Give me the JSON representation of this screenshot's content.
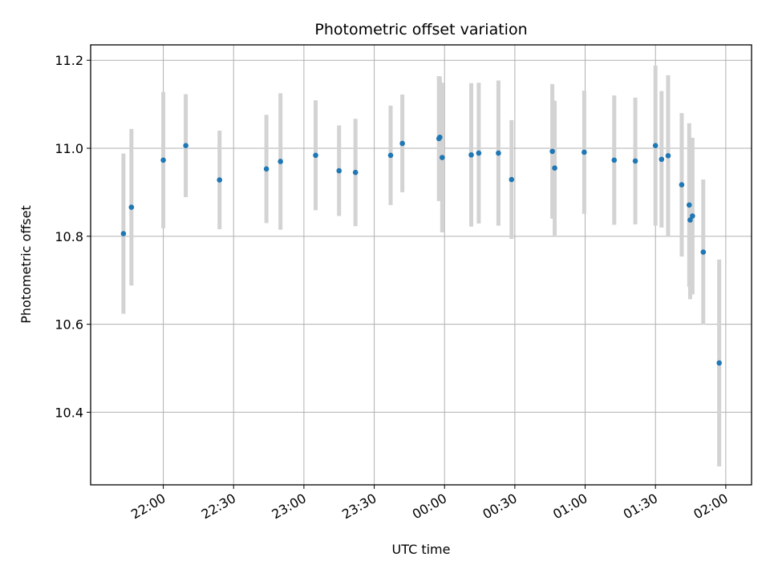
{
  "chart_data": {
    "type": "scatter",
    "title": "Photometric offset variation",
    "xlabel": "UTC time",
    "ylabel": "Photometric offset",
    "x_unit": "minutes relative to 00:00 UTC",
    "xlim": [
      -75.5,
      65.5
    ],
    "ylim": [
      10.235,
      11.235
    ],
    "grid": true,
    "x_ticks": [
      {
        "value": -60,
        "label": "22:00"
      },
      {
        "value": -45,
        "label": "22:30"
      },
      {
        "value": -30,
        "label": "23:00"
      },
      {
        "value": -15,
        "label": "23:30"
      },
      {
        "value": 0,
        "label": "00:00"
      },
      {
        "value": 15,
        "label": "00:30"
      },
      {
        "value": 30,
        "label": "01:00"
      },
      {
        "value": 45,
        "label": "01:30"
      },
      {
        "value": 60,
        "label": "02:00"
      }
    ],
    "y_ticks": [
      {
        "value": 10.4,
        "label": "10.4"
      },
      {
        "value": 10.6,
        "label": "10.6"
      },
      {
        "value": 10.8,
        "label": "10.8"
      },
      {
        "value": 11.0,
        "label": "11.0"
      },
      {
        "value": 11.2,
        "label": "11.2"
      }
    ],
    "colors": {
      "point": "#1f77b4",
      "errorbar": "#d3d3d3",
      "grid": "#b0b0b0"
    },
    "series": [
      {
        "x": [
          -68.5,
          -66.8,
          -60.0,
          -55.2,
          -48.0,
          -38.0,
          -35.0,
          -27.5,
          -22.5,
          -19.0,
          -11.5,
          -9.0,
          -1.2,
          -1.0,
          -0.5,
          5.7,
          7.3,
          11.5,
          14.3,
          23.0,
          23.5,
          29.8,
          36.2,
          40.7,
          45.0,
          46.3,
          47.7,
          50.6,
          52.2,
          52.4,
          52.9,
          55.2,
          58.6
        ],
        "y": [
          10.806,
          10.866,
          10.973,
          11.006,
          10.928,
          10.953,
          10.97,
          10.984,
          10.949,
          10.945,
          10.984,
          11.011,
          11.022,
          11.025,
          10.979,
          10.985,
          10.989,
          10.989,
          10.929,
          10.993,
          10.955,
          10.991,
          10.973,
          10.971,
          11.006,
          10.975,
          10.983,
          10.917,
          10.871,
          10.837,
          10.846,
          10.764,
          10.512
        ],
        "err": [
          0.182,
          0.178,
          0.155,
          0.117,
          0.112,
          0.123,
          0.155,
          0.125,
          0.103,
          0.122,
          0.113,
          0.111,
          0.142,
          0.138,
          0.17,
          0.163,
          0.16,
          0.165,
          0.135,
          0.153,
          0.153,
          0.14,
          0.147,
          0.144,
          0.182,
          0.155,
          0.183,
          0.163,
          0.186,
          0.18,
          0.178,
          0.165,
          0.235
        ]
      }
    ]
  }
}
